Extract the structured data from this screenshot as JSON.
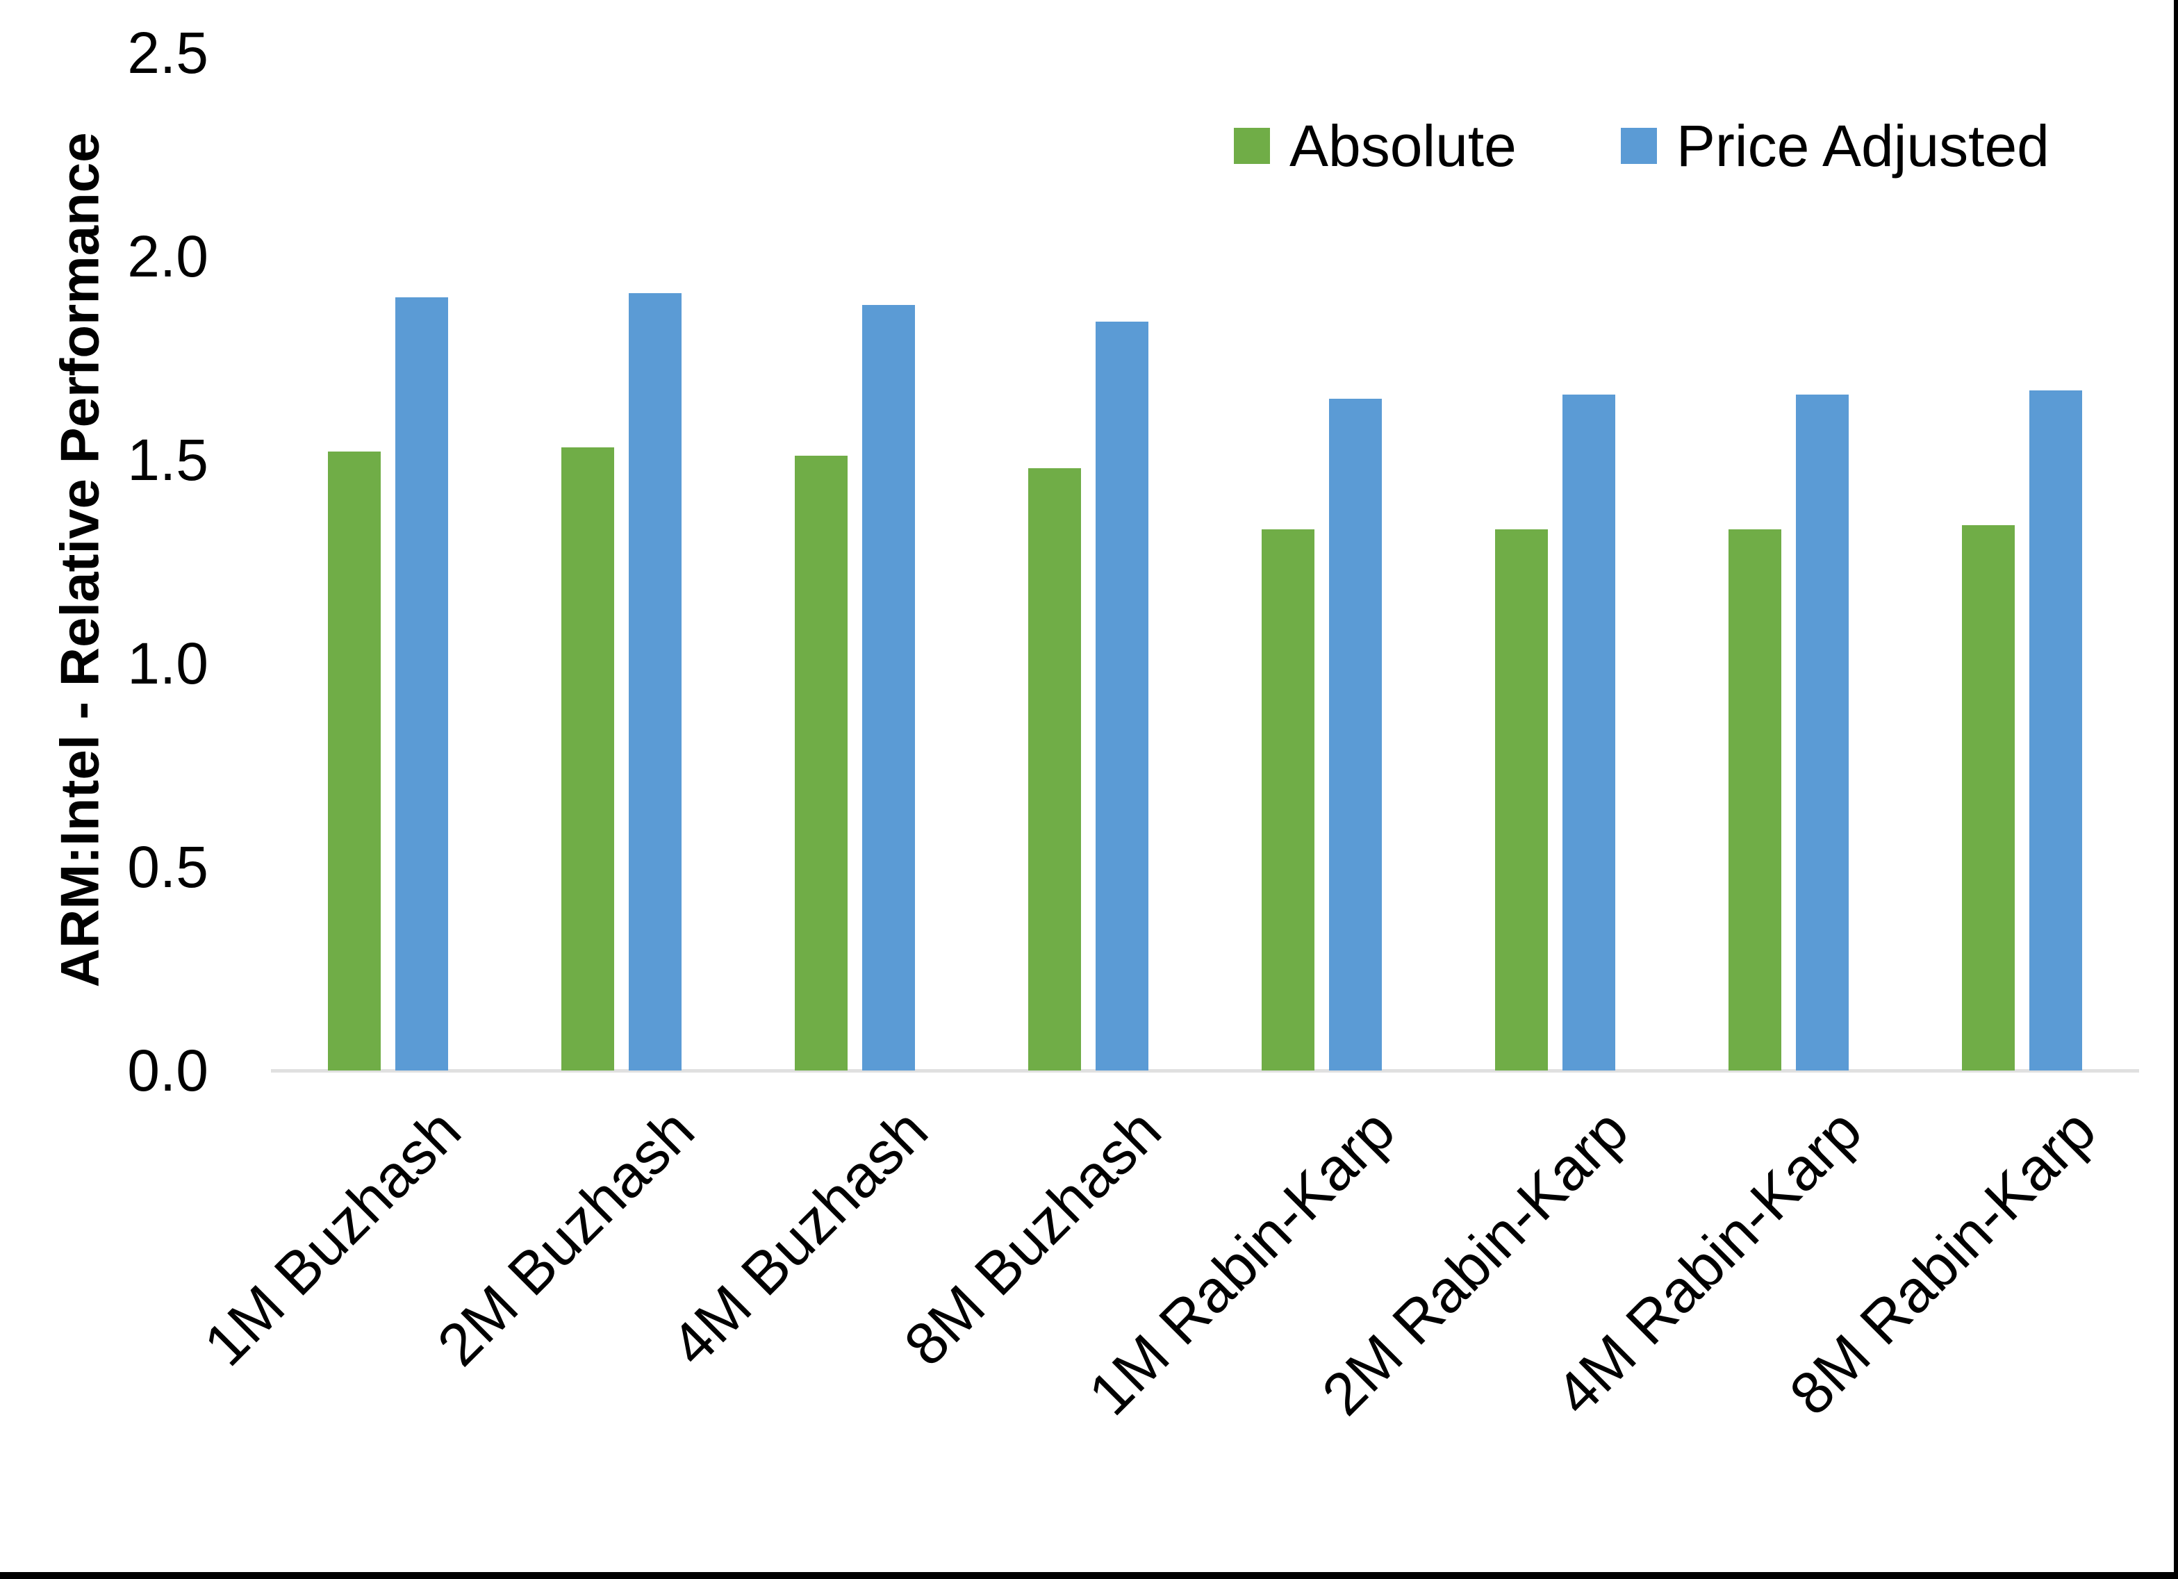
{
  "chart_data": {
    "type": "bar",
    "title": "",
    "ylabel": "ARM:Intel - Relative Performance",
    "xlabel": "",
    "ylim": [
      0,
      2.5
    ],
    "yticks": [
      "0.0",
      "0.5",
      "1.0",
      "1.5",
      "2.0",
      "2.5"
    ],
    "grid": false,
    "legend_position": "top-right",
    "x_tick_rotation": -45,
    "categories": [
      "1M Buzhash",
      "2M Buzhash",
      "4M Buzhash",
      "8M Buzhash",
      "1M Rabin-Karp",
      "2M Rabin-Karp",
      "4M Rabin-Karp",
      "8M Rabin-Karp"
    ],
    "series": [
      {
        "name": "Absolute",
        "color": "#70AD47",
        "values": [
          1.52,
          1.53,
          1.51,
          1.48,
          1.33,
          1.33,
          1.33,
          1.34
        ]
      },
      {
        "name": "Price Adjusted",
        "color": "#5B9BD5",
        "values": [
          1.9,
          1.91,
          1.88,
          1.84,
          1.65,
          1.66,
          1.66,
          1.67
        ]
      }
    ]
  },
  "colors": {
    "axis_line": "#e0e0e0",
    "text": "#000000",
    "background": "#ffffff",
    "frame_border": "#000000"
  }
}
